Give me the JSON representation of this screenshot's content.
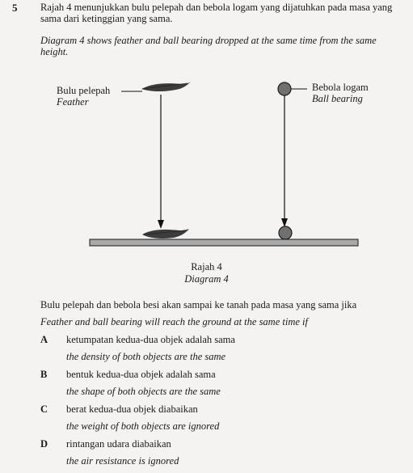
{
  "question": {
    "number": "5",
    "stem_ms": "Rajah 4 menunjukkan bulu pelepah dan bebola logam yang dijatuhkan pada masa yang sama dari ketinggian yang sama.",
    "stem_en": "Diagram 4 shows feather and ball bearing dropped at the same time from the same height."
  },
  "diagram": {
    "feather_label_ms": "Bulu pelepah",
    "feather_label_en": "Feather",
    "ball_label_ms": "Bebola logam",
    "ball_label_en": "Ball bearing",
    "caption_ms": "Rajah 4",
    "caption_en": "Diagram 4"
  },
  "prompt": {
    "text_ms": "Bulu pelepah dan bebola besi akan sampai ke tanah pada masa yang sama jika",
    "text_en": "Feather and ball bearing will reach the ground at the same time if"
  },
  "options": [
    {
      "letter": "A",
      "text_ms": "ketumpatan kedua-dua objek adalah sama",
      "text_en": "the density of both objects are the same"
    },
    {
      "letter": "B",
      "text_ms": "bentuk kedua-dua objek adalah sama",
      "text_en": "the shape of both objects are the same"
    },
    {
      "letter": "C",
      "text_ms": "berat kedua-dua objek diabaikan",
      "text_en": "the weight of both objects are ignored"
    },
    {
      "letter": "D",
      "text_ms": "rintangan udara diabaikan",
      "text_en": "the air resistance is ignored"
    }
  ]
}
